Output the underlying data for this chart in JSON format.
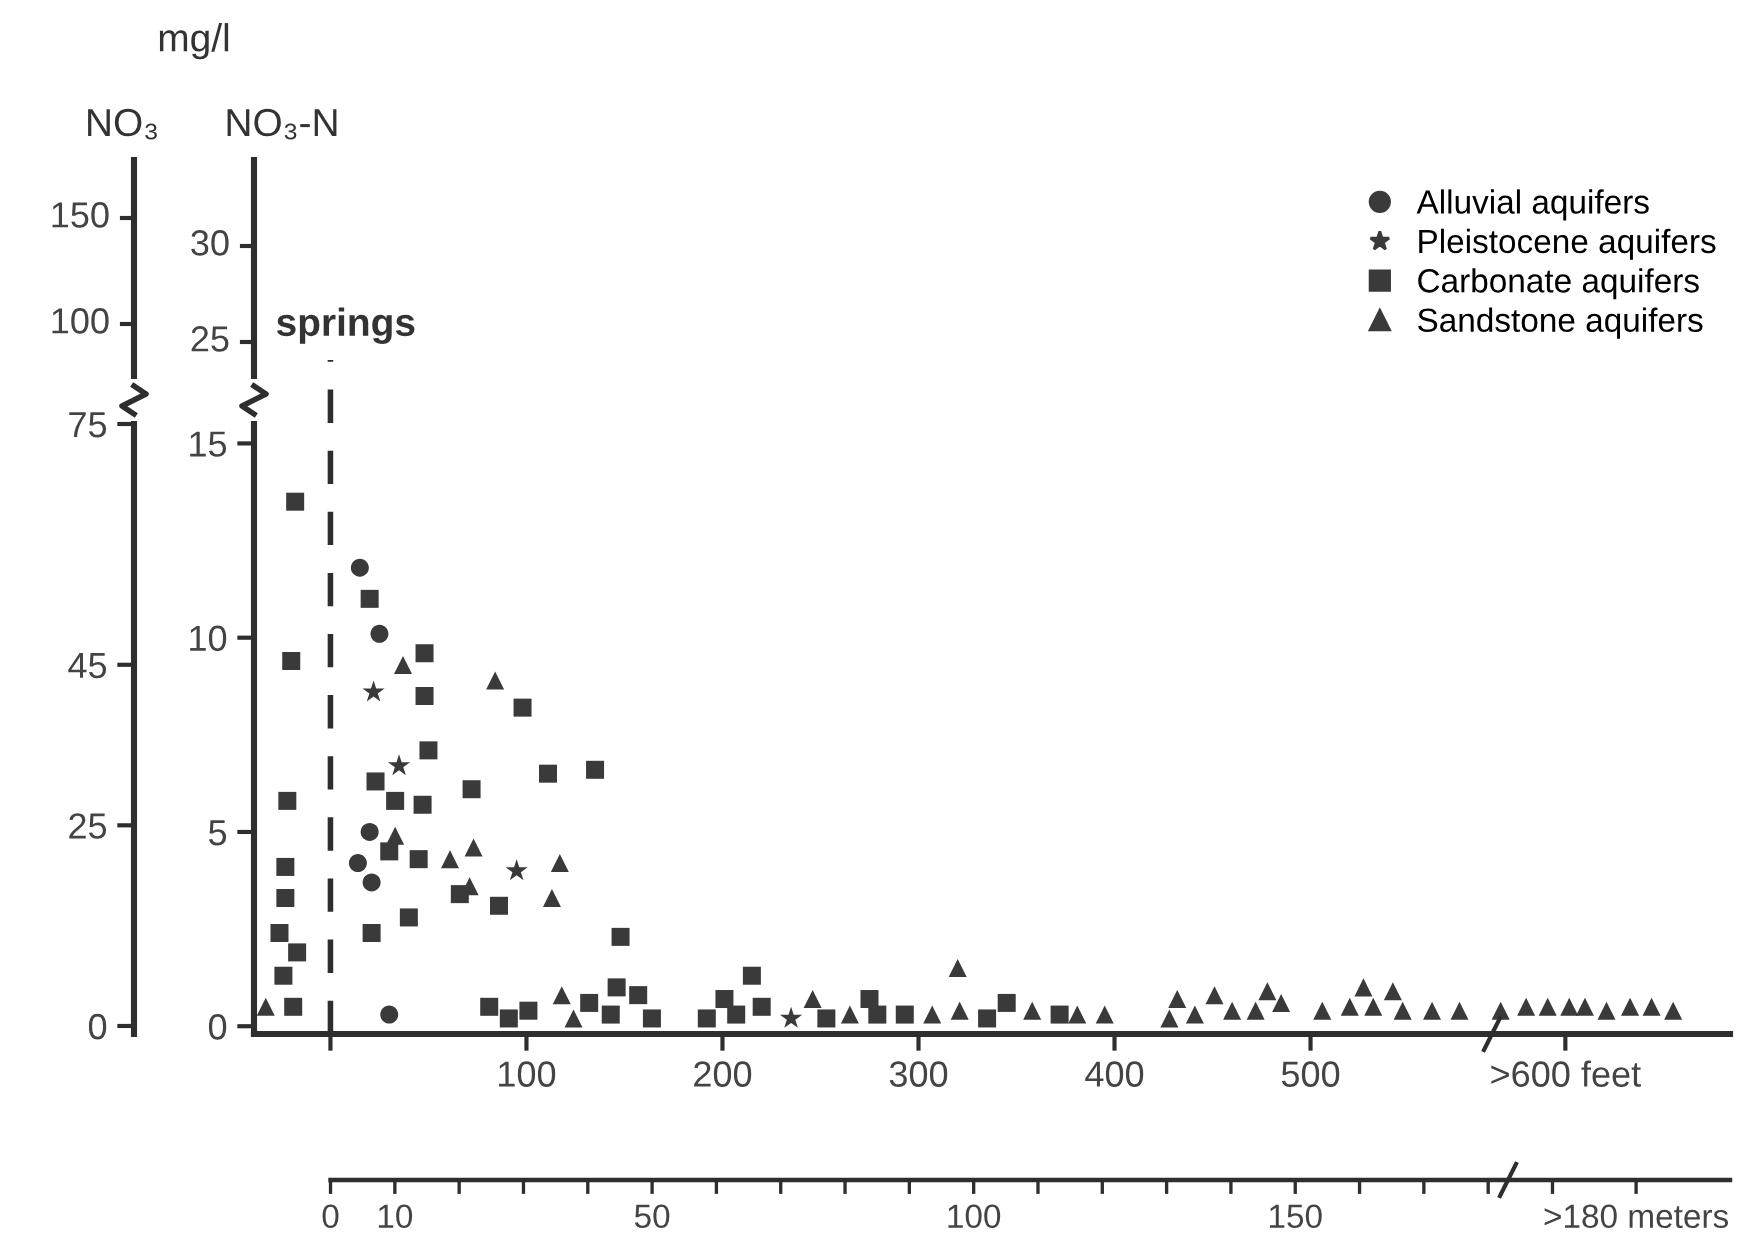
{
  "chart_data": [
    {
      "type": "other",
      "title": "mg/l",
      "ylabel": "NO₃-N",
      "y2label": "NO₃",
      "annotations": [
        "30",
        "25",
        "150",
        "100"
      ]
    },
    {
      "type": "scatter",
      "xlim": [
        -39,
        714
      ],
      "xticks": [
        {
          "value": 0,
          "label": null
        },
        100,
        200,
        300,
        400,
        500,
        {
          "value": 630,
          "label": ">600 feet"
        }
      ],
      "x2lim": [
        -11.9,
        217.6
      ],
      "x2ticks": [
        0,
        10,
        50,
        100,
        150,
        {
          "value": 203,
          "label": ">180 meters"
        }
      ],
      "ylim": [
        -0.2,
        15.5
      ],
      "yticks": [
        0,
        5,
        10,
        15
      ],
      "y2lim": [
        -1,
        75
      ],
      "y2ticks": [
        0,
        25,
        45,
        75
      ],
      "legend": "top right",
      "ref_lines": [
        {
          "axis": "x",
          "value": 0,
          "label": "springs",
          "line_style": "dashed"
        }
      ],
      "series": [
        {
          "name": "Alluvial aquifers",
          "color": "#3a3a3a",
          "marker": "circle",
          "x": [
            15,
            25,
            20,
            14,
            21,
            30
          ],
          "values": [
            11.8,
            10.1,
            5.0,
            4.2,
            3.7,
            0.3
          ]
        },
        {
          "name": "Pleistocene aquifers",
          "color": "#3a3a3a",
          "marker": "star",
          "x": [
            22,
            35,
            95,
            235
          ],
          "values": [
            8.6,
            6.7,
            4.0,
            0.2
          ]
        },
        {
          "name": "Carbonate aquifers",
          "color": "#3a3a3a",
          "marker": "square",
          "x": [
            -18,
            -20,
            -22,
            -23,
            -23,
            -26,
            -17,
            -24,
            -19,
            20,
            48,
            48,
            50,
            23,
            33,
            47,
            30,
            45,
            72,
            66,
            86,
            40,
            21,
            98,
            111,
            135,
            148,
            146,
            157,
            81,
            91,
            101,
            132,
            143,
            164,
            192,
            201,
            207,
            215,
            220,
            253,
            275,
            279,
            293,
            335,
            345,
            372
          ],
          "values": [
            13.5,
            9.4,
            5.8,
            4.1,
            3.3,
            2.4,
            1.9,
            1.3,
            0.5,
            11.0,
            9.6,
            8.5,
            7.1,
            6.3,
            5.8,
            5.7,
            4.5,
            4.3,
            6.1,
            3.4,
            3.1,
            2.8,
            2.4,
            8.2,
            6.5,
            6.6,
            2.3,
            1.0,
            0.8,
            0.5,
            0.2,
            0.4,
            0.6,
            0.3,
            0.2,
            0.2,
            0.7,
            0.3,
            1.3,
            0.5,
            0.2,
            0.7,
            0.3,
            0.3,
            0.2,
            0.6,
            0.3
          ]
        },
        {
          "name": "Sandstone aquifers",
          "color": "#3a3a3a",
          "marker": "triangle",
          "x": [
            37,
            84,
            33,
            61,
            73,
            71,
            117,
            113,
            118,
            124,
            -33,
            246,
            265,
            307,
            320,
            321,
            358,
            381,
            395,
            428,
            432,
            441,
            451,
            460,
            472,
            478,
            485,
            506,
            520,
            527,
            532,
            542,
            547,
            562,
            576,
            597,
            610,
            621,
            632,
            640,
            651,
            663,
            674,
            685
          ],
          "values": [
            9.3,
            8.9,
            4.9,
            4.3,
            4.6,
            3.6,
            4.2,
            3.3,
            0.8,
            0.2,
            0.5,
            0.7,
            0.3,
            0.3,
            1.5,
            0.4,
            0.4,
            0.3,
            0.3,
            0.2,
            0.7,
            0.3,
            0.8,
            0.4,
            0.4,
            0.9,
            0.6,
            0.4,
            0.5,
            1.0,
            0.5,
            0.9,
            0.4,
            0.4,
            0.4,
            0.4,
            0.5,
            0.5,
            0.5,
            0.5,
            0.4,
            0.5,
            0.5,
            0.4
          ]
        }
      ]
    }
  ]
}
